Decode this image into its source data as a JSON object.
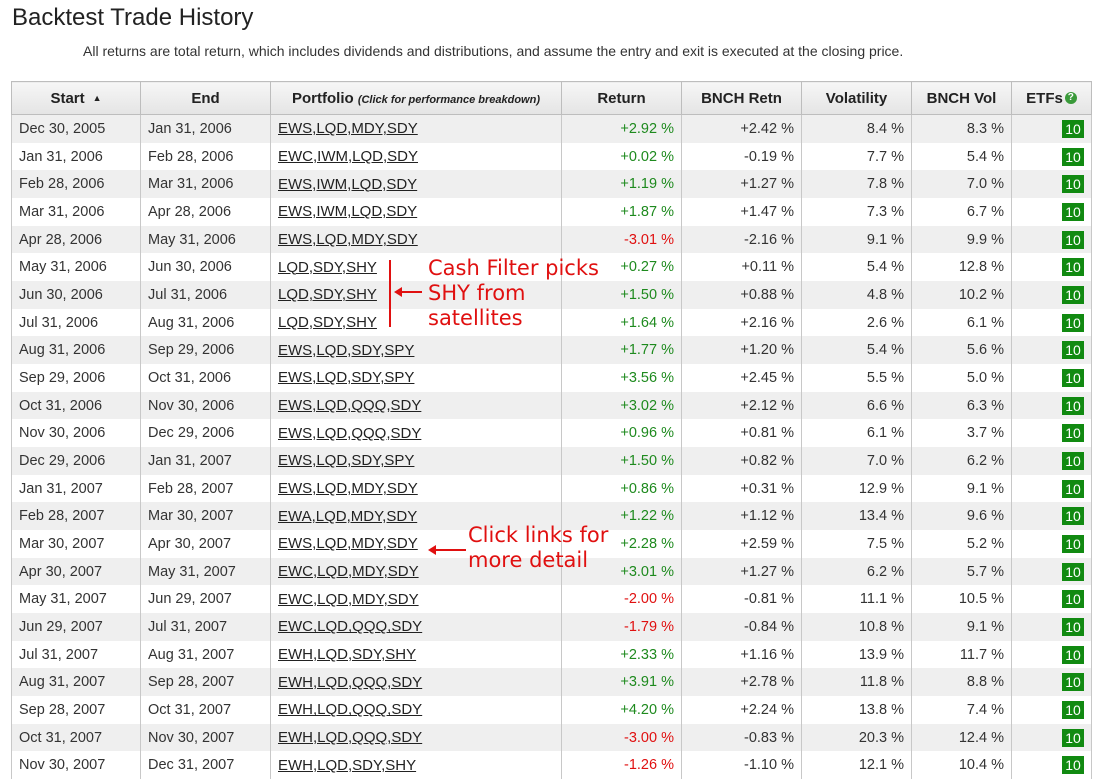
{
  "page": {
    "title": "Backtest Trade History",
    "subtitle": "All returns are total return, which includes dividends and distributions, and assume the entry and exit is executed at the closing price."
  },
  "table": {
    "headers": {
      "start": "Start",
      "end": "End",
      "portfolio": "Portfolio",
      "portfolio_note": "(Click for performance breakdown)",
      "return": "Return",
      "bnch_retn": "BNCH Retn",
      "volatility": "Volatility",
      "bnch_vol": "BNCH Vol",
      "etfs": "ETFs"
    },
    "sort_indicator": "▲",
    "help_icon": "?",
    "rows": [
      {
        "start": "Dec 30, 2005",
        "end": "Jan 31, 2006",
        "portfolio": "EWS,LQD,MDY,SDY",
        "ret": "+2.92 %",
        "bnch": "+2.42 %",
        "vol": "8.4 %",
        "bvol": "8.3 %",
        "etfs": "10"
      },
      {
        "start": "Jan 31, 2006",
        "end": "Feb 28, 2006",
        "portfolio": "EWC,IWM,LQD,SDY",
        "ret": "+0.02 %",
        "bnch": "-0.19 %",
        "vol": "7.7 %",
        "bvol": "5.4 %",
        "etfs": "10"
      },
      {
        "start": "Feb 28, 2006",
        "end": "Mar 31, 2006",
        "portfolio": "EWS,IWM,LQD,SDY",
        "ret": "+1.19 %",
        "bnch": "+1.27 %",
        "vol": "7.8 %",
        "bvol": "7.0 %",
        "etfs": "10"
      },
      {
        "start": "Mar 31, 2006",
        "end": "Apr 28, 2006",
        "portfolio": "EWS,IWM,LQD,SDY",
        "ret": "+1.87 %",
        "bnch": "+1.47 %",
        "vol": "7.3 %",
        "bvol": "6.7 %",
        "etfs": "10"
      },
      {
        "start": "Apr 28, 2006",
        "end": "May 31, 2006",
        "portfolio": "EWS,LQD,MDY,SDY",
        "ret": "-3.01 %",
        "bnch": "-2.16 %",
        "vol": "9.1 %",
        "bvol": "9.9 %",
        "etfs": "10"
      },
      {
        "start": "May 31, 2006",
        "end": "Jun 30, 2006",
        "portfolio": "LQD,SDY,SHY",
        "ret": "+0.27 %",
        "bnch": "+0.11 %",
        "vol": "5.4 %",
        "bvol": "12.8 %",
        "etfs": "10"
      },
      {
        "start": "Jun 30, 2006",
        "end": "Jul 31, 2006",
        "portfolio": "LQD,SDY,SHY",
        "ret": "+1.50 %",
        "bnch": "+0.88 %",
        "vol": "4.8 %",
        "bvol": "10.2 %",
        "etfs": "10"
      },
      {
        "start": "Jul 31, 2006",
        "end": "Aug 31, 2006",
        "portfolio": "LQD,SDY,SHY",
        "ret": "+1.64 %",
        "bnch": "+2.16 %",
        "vol": "2.6 %",
        "bvol": "6.1 %",
        "etfs": "10"
      },
      {
        "start": "Aug 31, 2006",
        "end": "Sep 29, 2006",
        "portfolio": "EWS,LQD,SDY,SPY",
        "ret": "+1.77 %",
        "bnch": "+1.20 %",
        "vol": "5.4 %",
        "bvol": "5.6 %",
        "etfs": "10"
      },
      {
        "start": "Sep 29, 2006",
        "end": "Oct 31, 2006",
        "portfolio": "EWS,LQD,SDY,SPY",
        "ret": "+3.56 %",
        "bnch": "+2.45 %",
        "vol": "5.5 %",
        "bvol": "5.0 %",
        "etfs": "10"
      },
      {
        "start": "Oct 31, 2006",
        "end": "Nov 30, 2006",
        "portfolio": "EWS,LQD,QQQ,SDY",
        "ret": "+3.02 %",
        "bnch": "+2.12 %",
        "vol": "6.6 %",
        "bvol": "6.3 %",
        "etfs": "10"
      },
      {
        "start": "Nov 30, 2006",
        "end": "Dec 29, 2006",
        "portfolio": "EWS,LQD,QQQ,SDY",
        "ret": "+0.96 %",
        "bnch": "+0.81 %",
        "vol": "6.1 %",
        "bvol": "3.7 %",
        "etfs": "10"
      },
      {
        "start": "Dec 29, 2006",
        "end": "Jan 31, 2007",
        "portfolio": "EWS,LQD,SDY,SPY",
        "ret": "+1.50 %",
        "bnch": "+0.82 %",
        "vol": "7.0 %",
        "bvol": "6.2 %",
        "etfs": "10"
      },
      {
        "start": "Jan 31, 2007",
        "end": "Feb 28, 2007",
        "portfolio": "EWS,LQD,MDY,SDY",
        "ret": "+0.86 %",
        "bnch": "+0.31 %",
        "vol": "12.9 %",
        "bvol": "9.1 %",
        "etfs": "10"
      },
      {
        "start": "Feb 28, 2007",
        "end": "Mar 30, 2007",
        "portfolio": "EWA,LQD,MDY,SDY",
        "ret": "+1.22 %",
        "bnch": "+1.12 %",
        "vol": "13.4 %",
        "bvol": "9.6 %",
        "etfs": "10"
      },
      {
        "start": "Mar 30, 2007",
        "end": "Apr 30, 2007",
        "portfolio": "EWS,LQD,MDY,SDY",
        "ret": "+2.28 %",
        "bnch": "+2.59 %",
        "vol": "7.5 %",
        "bvol": "5.2 %",
        "etfs": "10"
      },
      {
        "start": "Apr 30, 2007",
        "end": "May 31, 2007",
        "portfolio": "EWC,LQD,MDY,SDY",
        "ret": "+3.01 %",
        "bnch": "+1.27 %",
        "vol": "6.2 %",
        "bvol": "5.7 %",
        "etfs": "10"
      },
      {
        "start": "May 31, 2007",
        "end": "Jun 29, 2007",
        "portfolio": "EWC,LQD,MDY,SDY",
        "ret": "-2.00 %",
        "bnch": "-0.81 %",
        "vol": "11.1 %",
        "bvol": "10.5 %",
        "etfs": "10"
      },
      {
        "start": "Jun 29, 2007",
        "end": "Jul 31, 2007",
        "portfolio": "EWC,LQD,QQQ,SDY",
        "ret": "-1.79 %",
        "bnch": "-0.84 %",
        "vol": "10.8 %",
        "bvol": "9.1 %",
        "etfs": "10"
      },
      {
        "start": "Jul 31, 2007",
        "end": "Aug 31, 2007",
        "portfolio": "EWH,LQD,SDY,SHY",
        "ret": "+2.33 %",
        "bnch": "+1.16 %",
        "vol": "13.9 %",
        "bvol": "11.7 %",
        "etfs": "10"
      },
      {
        "start": "Aug 31, 2007",
        "end": "Sep 28, 2007",
        "portfolio": "EWH,LQD,QQQ,SDY",
        "ret": "+3.91 %",
        "bnch": "+2.78 %",
        "vol": "11.8 %",
        "bvol": "8.8 %",
        "etfs": "10"
      },
      {
        "start": "Sep 28, 2007",
        "end": "Oct 31, 2007",
        "portfolio": "EWH,LQD,QQQ,SDY",
        "ret": "+4.20 %",
        "bnch": "+2.24 %",
        "vol": "13.8 %",
        "bvol": "7.4 %",
        "etfs": "10"
      },
      {
        "start": "Oct 31, 2007",
        "end": "Nov 30, 2007",
        "portfolio": "EWH,LQD,QQQ,SDY",
        "ret": "-3.00 %",
        "bnch": "-0.83 %",
        "vol": "20.3 %",
        "bvol": "12.4 %",
        "etfs": "10"
      },
      {
        "start": "Nov 30, 2007",
        "end": "Dec 31, 2007",
        "portfolio": "EWH,LQD,SDY,SHY",
        "ret": "-1.26 %",
        "bnch": "-1.10 %",
        "vol": "12.1 %",
        "bvol": "10.4 %",
        "etfs": "10"
      }
    ]
  },
  "annotations": {
    "cash_filter": [
      "Cash Filter picks",
      "SHY from",
      "satellites"
    ],
    "click_links": [
      "Click links for",
      "more detail"
    ]
  },
  "colors": {
    "positive": "#1e8a1e",
    "negative": "#e01010",
    "annotation": "#e01010",
    "etf_badge": "#118a11"
  }
}
